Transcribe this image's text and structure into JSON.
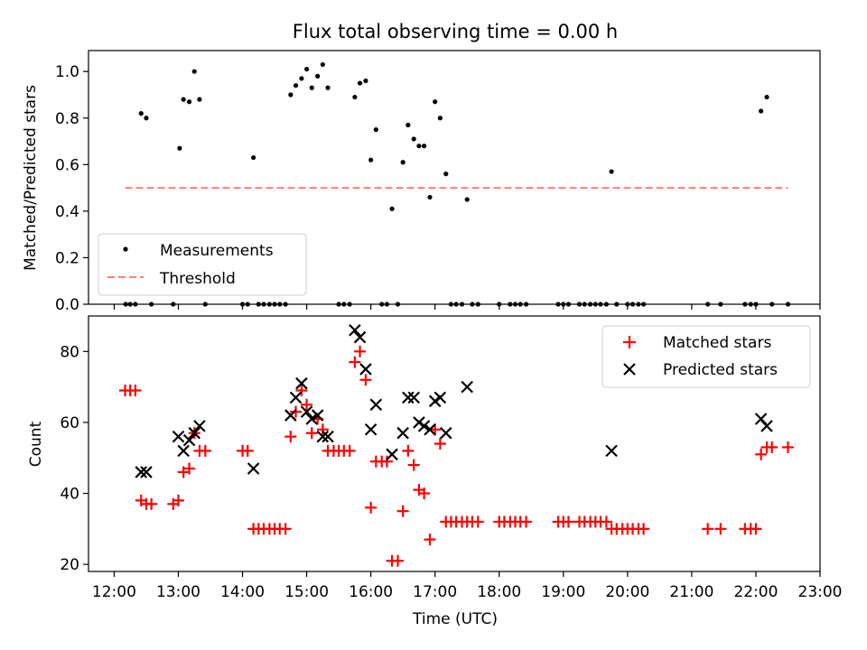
{
  "chart_data": [
    {
      "type": "scatter",
      "title": "Flux total observing time = 0.00 h",
      "xlabel": "",
      "ylabel": "Matched/Predicted stars",
      "ylim": [
        0,
        1.09
      ],
      "yticks": [
        "0.0",
        "0.2",
        "0.4",
        "0.6",
        "0.8",
        "1.0"
      ],
      "legend_placement": "bottom-left",
      "series": [
        {
          "name": "Measurements",
          "color": "#000000",
          "points": [
            [
              12.18,
              0
            ],
            [
              12.25,
              0
            ],
            [
              12.33,
              0
            ],
            [
              12.42,
              0.82
            ],
            [
              12.5,
              0.8
            ],
            [
              12.58,
              0
            ],
            [
              12.92,
              0
            ],
            [
              13.02,
              0.67
            ],
            [
              13.08,
              0.88
            ],
            [
              13.17,
              0.87
            ],
            [
              13.25,
              1.0
            ],
            [
              13.33,
              0.88
            ],
            [
              13.42,
              0
            ],
            [
              14.0,
              0
            ],
            [
              14.08,
              0
            ],
            [
              14.17,
              0.63
            ],
            [
              14.25,
              0
            ],
            [
              14.33,
              0
            ],
            [
              14.42,
              0
            ],
            [
              14.5,
              0
            ],
            [
              14.58,
              0
            ],
            [
              14.67,
              0
            ],
            [
              14.75,
              0.9
            ],
            [
              14.83,
              0.94
            ],
            [
              14.92,
              0.97
            ],
            [
              15.0,
              1.01
            ],
            [
              15.08,
              0.93
            ],
            [
              15.17,
              0.98
            ],
            [
              15.25,
              1.03
            ],
            [
              15.33,
              0.93
            ],
            [
              15.5,
              0
            ],
            [
              15.58,
              0
            ],
            [
              15.67,
              0
            ],
            [
              15.75,
              0.89
            ],
            [
              15.83,
              0.95
            ],
            [
              15.92,
              0.96
            ],
            [
              16.0,
              0.62
            ],
            [
              16.08,
              0.75
            ],
            [
              16.17,
              0
            ],
            [
              16.25,
              0
            ],
            [
              16.33,
              0.41
            ],
            [
              16.42,
              0
            ],
            [
              16.5,
              0.61
            ],
            [
              16.58,
              0.77
            ],
            [
              16.67,
              0.71
            ],
            [
              16.75,
              0.68
            ],
            [
              16.83,
              0.68
            ],
            [
              16.92,
              0.46
            ],
            [
              17.0,
              0.87
            ],
            [
              17.08,
              0.8
            ],
            [
              17.17,
              0.56
            ],
            [
              17.25,
              0
            ],
            [
              17.33,
              0
            ],
            [
              17.42,
              0
            ],
            [
              17.5,
              0.45
            ],
            [
              17.58,
              0
            ],
            [
              17.67,
              0
            ],
            [
              18.0,
              0
            ],
            [
              18.17,
              0
            ],
            [
              18.25,
              0
            ],
            [
              18.33,
              0
            ],
            [
              18.42,
              0
            ],
            [
              18.92,
              0
            ],
            [
              19.0,
              0
            ],
            [
              19.08,
              0
            ],
            [
              19.25,
              0
            ],
            [
              19.33,
              0
            ],
            [
              19.42,
              0
            ],
            [
              19.5,
              0
            ],
            [
              19.58,
              0
            ],
            [
              19.67,
              0
            ],
            [
              19.75,
              0.57
            ],
            [
              19.83,
              0
            ],
            [
              20.0,
              0
            ],
            [
              20.08,
              0
            ],
            [
              20.17,
              0
            ],
            [
              20.25,
              0
            ],
            [
              21.25,
              0
            ],
            [
              21.45,
              0
            ],
            [
              21.83,
              0
            ],
            [
              21.92,
              0
            ],
            [
              22.0,
              0
            ],
            [
              22.08,
              0.83
            ],
            [
              22.17,
              0.89
            ],
            [
              22.25,
              0
            ],
            [
              22.5,
              0
            ]
          ]
        },
        {
          "name": "Threshold",
          "color": "#ff7f7f",
          "style": "dashed",
          "x": [
            12.17,
            22.5
          ],
          "y": [
            0.5,
            0.5
          ]
        }
      ]
    },
    {
      "type": "scatter",
      "title": "",
      "xlabel": "Time (UTC)",
      "ylabel": "Count",
      "xlim": [
        11.6,
        23.0
      ],
      "ylim": [
        18,
        90
      ],
      "yticks": [
        "20",
        "40",
        "60",
        "80"
      ],
      "xticks": [
        "12:00",
        "13:00",
        "14:00",
        "15:00",
        "16:00",
        "17:00",
        "18:00",
        "19:00",
        "20:00",
        "21:00",
        "22:00",
        "23:00"
      ],
      "legend_placement": "top-right",
      "series": [
        {
          "name": "Matched stars",
          "color": "#ff0000",
          "marker": "plus",
          "points": [
            [
              12.17,
              69
            ],
            [
              12.25,
              69
            ],
            [
              12.33,
              69
            ],
            [
              12.42,
              38
            ],
            [
              12.5,
              37
            ],
            [
              12.58,
              37
            ],
            [
              12.92,
              37
            ],
            [
              13.0,
              38
            ],
            [
              13.08,
              46
            ],
            [
              13.17,
              47
            ],
            [
              13.25,
              57
            ],
            [
              13.33,
              52
            ],
            [
              13.42,
              52
            ],
            [
              14.0,
              52
            ],
            [
              14.08,
              52
            ],
            [
              14.17,
              30
            ],
            [
              14.25,
              30
            ],
            [
              14.33,
              30
            ],
            [
              14.42,
              30
            ],
            [
              14.5,
              30
            ],
            [
              14.58,
              30
            ],
            [
              14.67,
              30
            ],
            [
              14.75,
              56
            ],
            [
              14.83,
              63
            ],
            [
              14.92,
              69
            ],
            [
              15.0,
              65
            ],
            [
              15.08,
              57
            ],
            [
              15.17,
              61
            ],
            [
              15.25,
              58
            ],
            [
              15.33,
              52
            ],
            [
              15.42,
              52
            ],
            [
              15.5,
              52
            ],
            [
              15.58,
              52
            ],
            [
              15.67,
              52
            ],
            [
              15.75,
              77
            ],
            [
              15.83,
              80
            ],
            [
              15.92,
              72
            ],
            [
              16.0,
              36
            ],
            [
              16.08,
              49
            ],
            [
              16.17,
              49
            ],
            [
              16.25,
              49
            ],
            [
              16.33,
              21
            ],
            [
              16.42,
              21
            ],
            [
              16.5,
              35
            ],
            [
              16.58,
              52
            ],
            [
              16.67,
              48
            ],
            [
              16.75,
              41
            ],
            [
              16.83,
              40
            ],
            [
              16.92,
              27
            ],
            [
              17.0,
              58
            ],
            [
              17.08,
              54
            ],
            [
              17.17,
              32
            ],
            [
              17.25,
              32
            ],
            [
              17.33,
              32
            ],
            [
              17.42,
              32
            ],
            [
              17.5,
              32
            ],
            [
              17.58,
              32
            ],
            [
              17.67,
              32
            ],
            [
              18.0,
              32
            ],
            [
              18.08,
              32
            ],
            [
              18.17,
              32
            ],
            [
              18.25,
              32
            ],
            [
              18.33,
              32
            ],
            [
              18.42,
              32
            ],
            [
              18.92,
              32
            ],
            [
              19.0,
              32
            ],
            [
              19.08,
              32
            ],
            [
              19.25,
              32
            ],
            [
              19.33,
              32
            ],
            [
              19.42,
              32
            ],
            [
              19.5,
              32
            ],
            [
              19.58,
              32
            ],
            [
              19.67,
              32
            ],
            [
              19.75,
              30
            ],
            [
              19.83,
              30
            ],
            [
              19.92,
              30
            ],
            [
              20.0,
              30
            ],
            [
              20.08,
              30
            ],
            [
              20.17,
              30
            ],
            [
              20.25,
              30
            ],
            [
              21.25,
              30
            ],
            [
              21.45,
              30
            ],
            [
              21.83,
              30
            ],
            [
              21.92,
              30
            ],
            [
              22.0,
              30
            ],
            [
              22.08,
              51
            ],
            [
              22.17,
              53
            ],
            [
              22.25,
              53
            ],
            [
              22.5,
              53
            ]
          ]
        },
        {
          "name": "Predicted stars",
          "color": "#000000",
          "marker": "x",
          "points": [
            [
              12.42,
              46
            ],
            [
              12.5,
              46
            ],
            [
              13.0,
              56
            ],
            [
              13.08,
              52
            ],
            [
              13.17,
              55
            ],
            [
              13.25,
              57
            ],
            [
              13.33,
              59
            ],
            [
              14.17,
              47
            ],
            [
              14.75,
              62
            ],
            [
              14.83,
              67
            ],
            [
              14.92,
              71
            ],
            [
              15.0,
              63
            ],
            [
              15.08,
              61
            ],
            [
              15.17,
              62
            ],
            [
              15.25,
              56
            ],
            [
              15.33,
              56
            ],
            [
              15.75,
              86
            ],
            [
              15.83,
              84
            ],
            [
              15.92,
              75
            ],
            [
              16.0,
              58
            ],
            [
              16.08,
              65
            ],
            [
              16.33,
              51
            ],
            [
              16.5,
              57
            ],
            [
              16.58,
              67
            ],
            [
              16.67,
              67
            ],
            [
              16.75,
              60
            ],
            [
              16.83,
              59
            ],
            [
              16.92,
              58
            ],
            [
              17.0,
              66
            ],
            [
              17.08,
              67
            ],
            [
              17.17,
              57
            ],
            [
              17.5,
              70
            ],
            [
              19.75,
              52
            ],
            [
              22.08,
              61
            ],
            [
              22.17,
              59
            ]
          ]
        }
      ]
    }
  ]
}
